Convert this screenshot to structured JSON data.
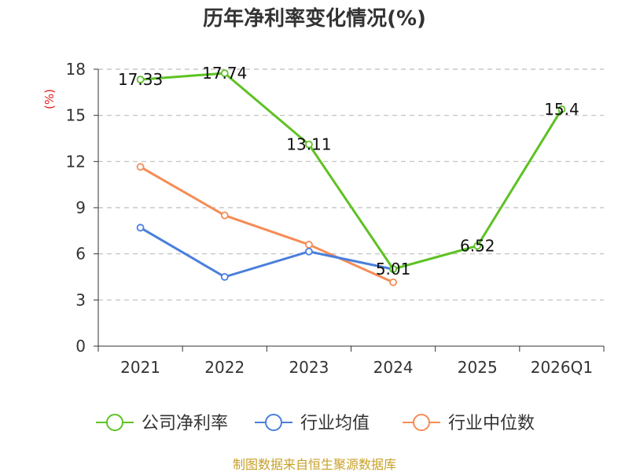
{
  "chart_data": {
    "type": "line",
    "title": "历年净利率变化情况(%)",
    "ylabel": "(%)",
    "xlabel": "",
    "categories": [
      "2021",
      "2022",
      "2023",
      "2024",
      "2025",
      "2026Q1"
    ],
    "ylim": [
      0,
      18
    ],
    "yticks": [
      0,
      3,
      6,
      9,
      12,
      15,
      18
    ],
    "grid": "horizontal dashed",
    "legend_position": "bottom",
    "series": [
      {
        "name": "公司净利率",
        "color": "#5ec224",
        "values": [
          17.33,
          17.74,
          13.11,
          5.01,
          6.52,
          15.4
        ],
        "labels": [
          "17.33",
          "17.74",
          "13.11",
          "5.01",
          "6.52",
          "15.4"
        ]
      },
      {
        "name": "行业均值",
        "color": "#4a7fdb",
        "values": [
          7.7,
          4.5,
          6.15,
          5.0,
          null,
          null
        ]
      },
      {
        "name": "行业中位数",
        "color": "#f58c56",
        "values": [
          11.65,
          8.5,
          6.6,
          4.15,
          null,
          null
        ]
      }
    ],
    "source": "制图数据来自恒生聚源数据库"
  }
}
